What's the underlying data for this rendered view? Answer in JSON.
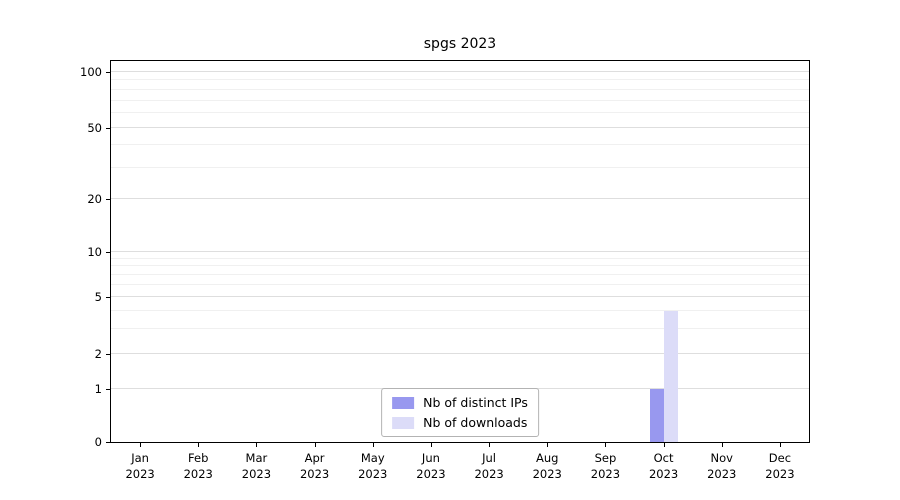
{
  "chart_data": {
    "type": "bar",
    "title": "spgs 2023",
    "categories": [
      "Jan",
      "Feb",
      "Mar",
      "Apr",
      "May",
      "Jun",
      "Jul",
      "Aug",
      "Sep",
      "Oct",
      "Nov",
      "Dec"
    ],
    "year": "2023",
    "series": [
      {
        "name": "Nb of distinct IPs",
        "color": "#9898ef",
        "values": [
          0,
          0,
          0,
          0,
          0,
          0,
          0,
          0,
          0,
          1,
          0,
          0
        ]
      },
      {
        "name": "Nb of downloads",
        "color": "#dcdcf8",
        "values": [
          0,
          0,
          0,
          0,
          0,
          0,
          0,
          0,
          0,
          4,
          0,
          0
        ]
      }
    ],
    "yticks": [
      0,
      1,
      2,
      5,
      10,
      20,
      50,
      100
    ],
    "yscale": "symlog",
    "grid": "horizontal",
    "legend_position": "lower center",
    "axis_color": "#000000",
    "background": "#ffffff"
  }
}
